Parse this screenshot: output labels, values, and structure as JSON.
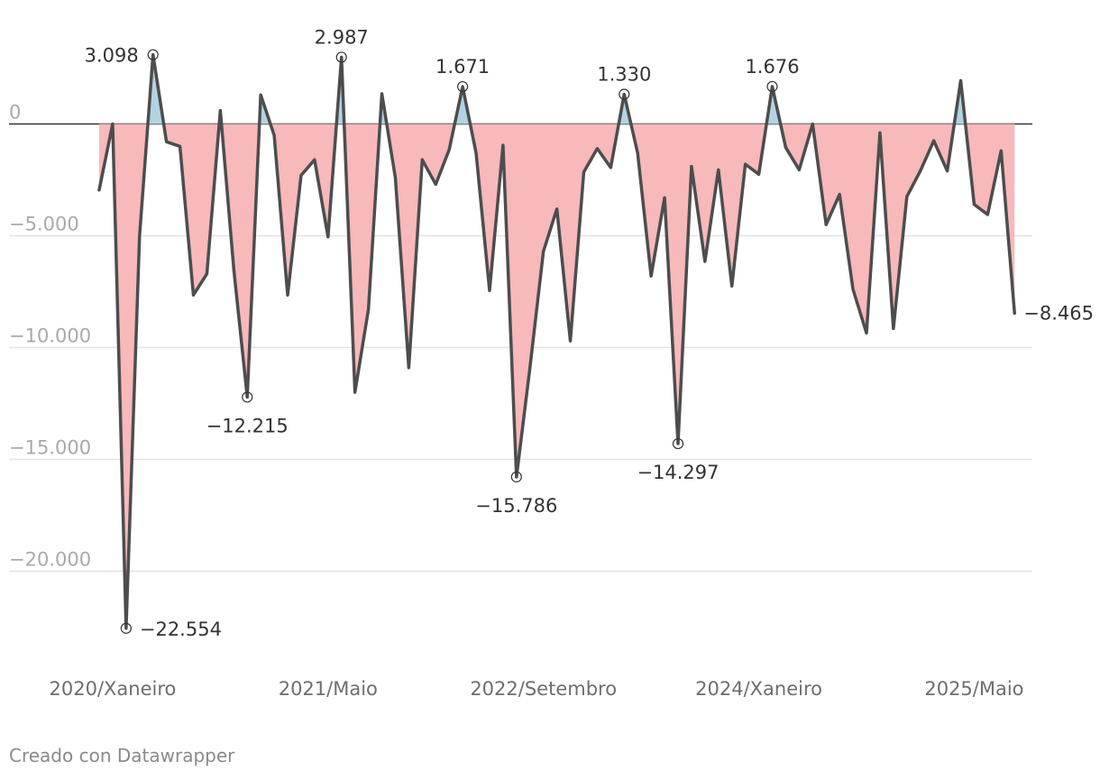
{
  "chart_data": {
    "type": "area",
    "title": "",
    "xlabel": "",
    "ylabel": "",
    "ylim": [
      -24500,
      4500
    ],
    "y_ticks": [
      {
        "value": 0,
        "label": "0"
      },
      {
        "value": -5000,
        "label": "−5.000"
      },
      {
        "value": -10000,
        "label": "−10.000"
      },
      {
        "value": -15000,
        "label": "−15.000"
      },
      {
        "value": -20000,
        "label": "−20.000"
      }
    ],
    "x_ticks": [
      {
        "index": 1,
        "label": "2020/Xaneiro"
      },
      {
        "index": 17,
        "label": "2021/Maio"
      },
      {
        "index": 33,
        "label": "2022/Setembro"
      },
      {
        "index": 49,
        "label": "2024/Xaneiro"
      },
      {
        "index": 65,
        "label": "2025/Maio"
      }
    ],
    "colors": {
      "positive": "#b3d3e5",
      "negative": "#f7b9ba",
      "line": "#4d4d4d"
    },
    "values": [
      -2950,
      0,
      -22554,
      -5000,
      3098,
      -800,
      -1000,
      -7650,
      -6700,
      600,
      -6500,
      -12215,
      1300,
      -500,
      -7650,
      -2300,
      -1600,
      -5050,
      2987,
      -12000,
      -8300,
      1350,
      -2400,
      -10900,
      -1600,
      -2700,
      -1150,
      1671,
      -1300,
      -7450,
      -950,
      -15786,
      -10900,
      -5700,
      -3800,
      -9700,
      -2150,
      -1100,
      -1950,
      1330,
      -1300,
      -6800,
      -3300,
      -14297,
      -1900,
      -6150,
      -2050,
      -7250,
      -1800,
      -2250,
      1676,
      -1050,
      -2050,
      0,
      -4500,
      -3150,
      -7400,
      -9350,
      -400,
      -9150,
      -3250,
      -2100,
      -750,
      -2100,
      1940,
      -3600,
      -4050,
      -1200,
      -8465
    ],
    "annotations": [
      {
        "index": 2,
        "label": "−22.554",
        "pos": "right"
      },
      {
        "index": 4,
        "label": "3.098",
        "pos": "left"
      },
      {
        "index": 11,
        "label": "−12.215",
        "pos": "below"
      },
      {
        "index": 18,
        "label": "2.987",
        "pos": "above"
      },
      {
        "index": 27,
        "label": "1.671",
        "pos": "above"
      },
      {
        "index": 31,
        "label": "−15.786",
        "pos": "below"
      },
      {
        "index": 39,
        "label": "1.330",
        "pos": "above"
      },
      {
        "index": 43,
        "label": "−14.297",
        "pos": "below"
      },
      {
        "index": 50,
        "label": "1.676",
        "pos": "above"
      },
      {
        "index": 68,
        "label": "−8.465",
        "pos": "right-end"
      }
    ]
  },
  "footer": {
    "credit": "Creado con Datawrapper"
  }
}
